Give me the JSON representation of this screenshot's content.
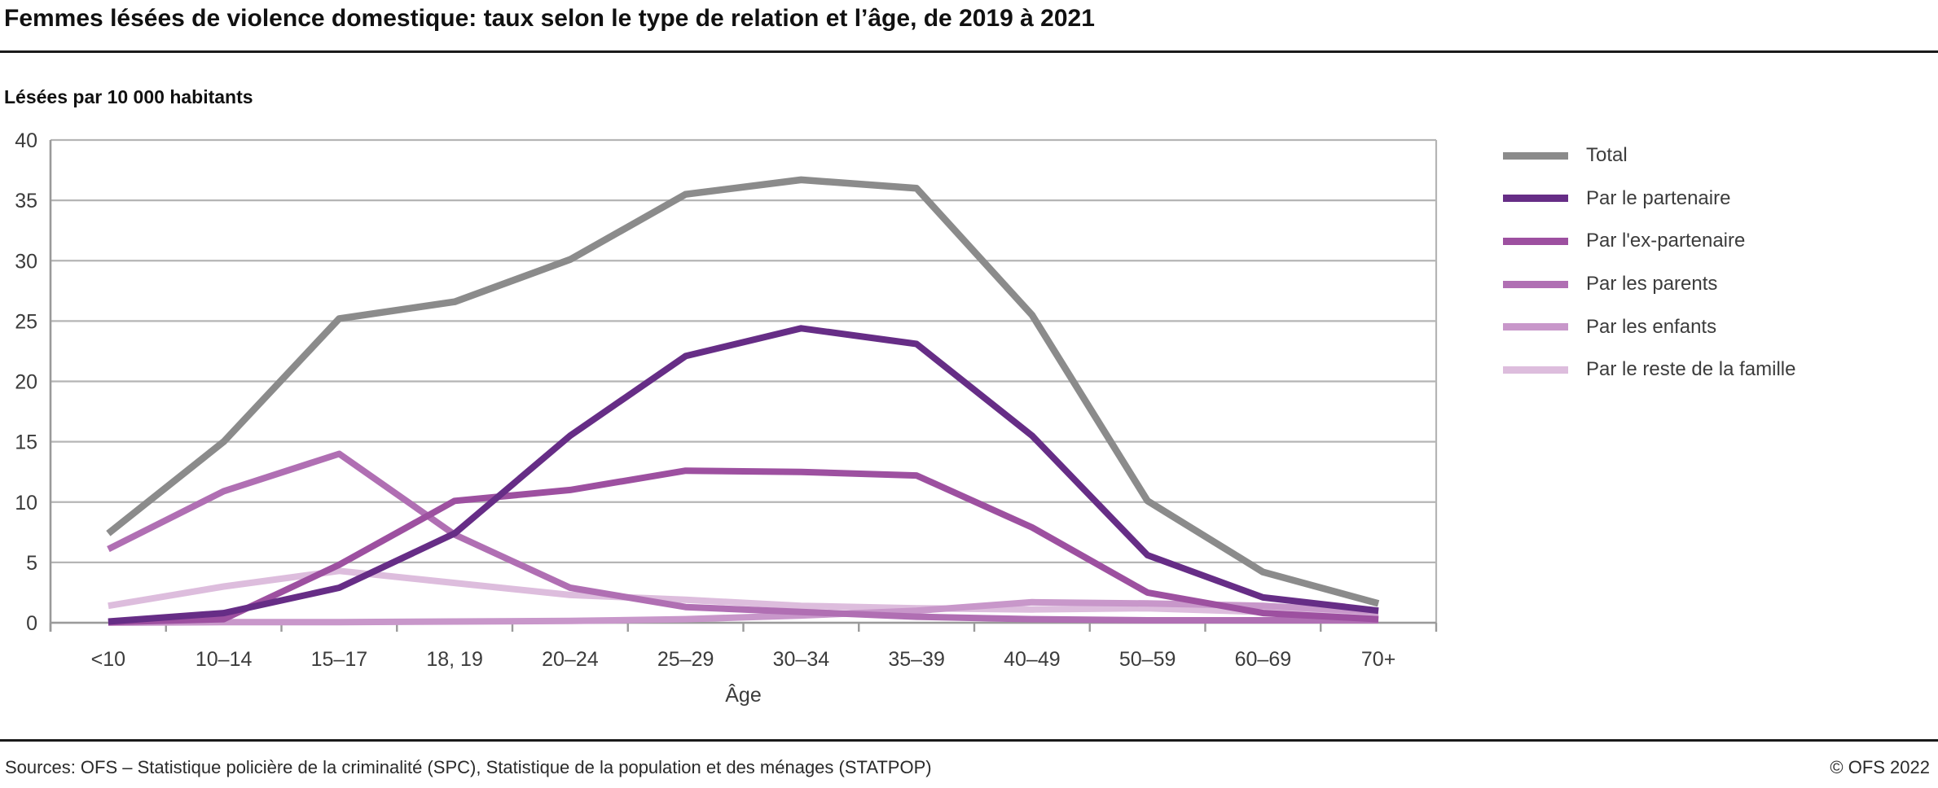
{
  "header": {
    "title": "Femmes lésées de violence domestique: taux selon le type de relation et l’âge, de 2019 à 2021",
    "subtitle": "Lésées par 10 000 habitants"
  },
  "footer": {
    "sources": "Sources: OFS – Statistique policière de la criminalité (SPC), Statistique de la population et des ménages (STATPOP)",
    "copyright": "© OFS 2022"
  },
  "chart_data": {
    "type": "line",
    "title": "Femmes lésées de violence domestique: taux selon le type de relation et l’âge, de 2019 à 2021",
    "ylabel": "Lésées par 10 000 habitants",
    "xlabel": "Âge",
    "categories": [
      "<10",
      "10–14",
      "15–17",
      "18, 19",
      "20–24",
      "25–29",
      "30–34",
      "35–39",
      "40–49",
      "50–59",
      "60–69",
      "70+"
    ],
    "ylim": [
      0,
      40
    ],
    "yticks": [
      0,
      5,
      10,
      15,
      20,
      25,
      30,
      35,
      40
    ],
    "grid": true,
    "legend_position": "right",
    "colors": {
      "grid": "#b5b5b5",
      "axis": "#9a9a9a",
      "tick_label": "#3c3c3c"
    },
    "series": [
      {
        "name": "Total",
        "color": "#8b8b8b",
        "values": [
          7.4,
          15.0,
          25.2,
          26.6,
          30.1,
          35.5,
          36.7,
          36.0,
          25.5,
          10.1,
          4.2,
          1.6
        ]
      },
      {
        "name": "Par le partenaire",
        "color": "#662d86",
        "values": [
          0.1,
          0.8,
          2.9,
          7.4,
          15.5,
          22.1,
          24.4,
          23.1,
          15.5,
          5.6,
          2.1,
          1.0
        ]
      },
      {
        "name": "Par l'ex-partenaire",
        "color": "#9d50a0",
        "values": [
          0.05,
          0.3,
          4.8,
          10.1,
          11.0,
          12.6,
          12.5,
          12.2,
          7.9,
          2.5,
          0.8,
          0.3
        ]
      },
      {
        "name": "Par les parents",
        "color": "#b06fb3",
        "values": [
          6.1,
          10.9,
          14.0,
          7.3,
          2.9,
          1.3,
          0.9,
          0.5,
          0.3,
          0.2,
          0.2,
          0.2
        ]
      },
      {
        "name": "Par les enfants",
        "color": "#c897ca",
        "values": [
          0.0,
          0.05,
          0.05,
          0.1,
          0.15,
          0.3,
          0.6,
          1.0,
          1.7,
          1.6,
          1.4,
          0.9
        ]
      },
      {
        "name": "Par le reste de la famille",
        "color": "#ddbddd",
        "values": [
          1.4,
          3.0,
          4.3,
          3.3,
          2.3,
          1.9,
          1.4,
          1.2,
          1.1,
          1.2,
          0.9,
          0.4
        ]
      }
    ]
  }
}
